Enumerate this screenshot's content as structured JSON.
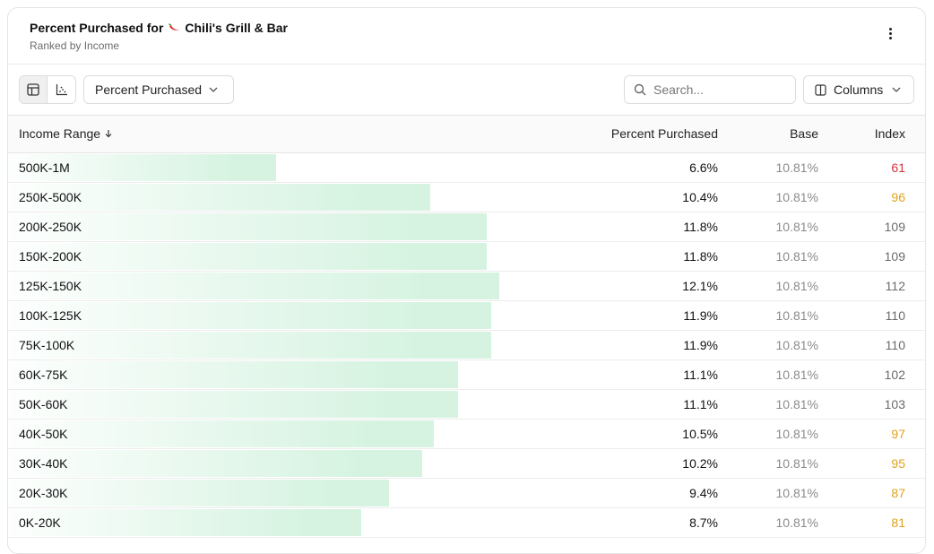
{
  "header": {
    "title_prefix": "Percent Purchased for",
    "title_brand": "Chili's Grill & Bar",
    "subtitle": "Ranked by Income",
    "pepper_icon": "chili-pepper-icon"
  },
  "toolbar": {
    "metric_select": "Percent Purchased",
    "search_placeholder": "Search...",
    "columns_label": "Columns"
  },
  "table": {
    "max_percent": 17.5,
    "columns": [
      "Income Range",
      "Percent Purchased",
      "Base",
      "Index"
    ],
    "rows": [
      {
        "range": "500K-1M",
        "pct": "6.6%",
        "pct_value": 6.6,
        "base": "10.81%",
        "index": "61",
        "level": "low"
      },
      {
        "range": "250K-500K",
        "pct": "10.4%",
        "pct_value": 10.4,
        "base": "10.81%",
        "index": "96",
        "level": "mid"
      },
      {
        "range": "200K-250K",
        "pct": "11.8%",
        "pct_value": 11.8,
        "base": "10.81%",
        "index": "109",
        "level": "norm"
      },
      {
        "range": "150K-200K",
        "pct": "11.8%",
        "pct_value": 11.8,
        "base": "10.81%",
        "index": "109",
        "level": "norm"
      },
      {
        "range": "125K-150K",
        "pct": "12.1%",
        "pct_value": 12.1,
        "base": "10.81%",
        "index": "112",
        "level": "norm"
      },
      {
        "range": "100K-125K",
        "pct": "11.9%",
        "pct_value": 11.9,
        "base": "10.81%",
        "index": "110",
        "level": "norm"
      },
      {
        "range": "75K-100K",
        "pct": "11.9%",
        "pct_value": 11.9,
        "base": "10.81%",
        "index": "110",
        "level": "norm"
      },
      {
        "range": "60K-75K",
        "pct": "11.1%",
        "pct_value": 11.1,
        "base": "10.81%",
        "index": "102",
        "level": "norm"
      },
      {
        "range": "50K-60K",
        "pct": "11.1%",
        "pct_value": 11.1,
        "base": "10.81%",
        "index": "103",
        "level": "norm"
      },
      {
        "range": "40K-50K",
        "pct": "10.5%",
        "pct_value": 10.5,
        "base": "10.81%",
        "index": "97",
        "level": "mid"
      },
      {
        "range": "30K-40K",
        "pct": "10.2%",
        "pct_value": 10.2,
        "base": "10.81%",
        "index": "95",
        "level": "mid"
      },
      {
        "range": "20K-30K",
        "pct": "9.4%",
        "pct_value": 9.4,
        "base": "10.81%",
        "index": "87",
        "level": "mid"
      },
      {
        "range": "0K-20K",
        "pct": "8.7%",
        "pct_value": 8.7,
        "base": "10.81%",
        "index": "81",
        "level": "mid"
      }
    ]
  },
  "colors": {
    "bar": "#d6f3e1",
    "index_low": "#dc2f3c",
    "index_mid": "#e2a21b",
    "index_norm": "#6b6b6b"
  }
}
